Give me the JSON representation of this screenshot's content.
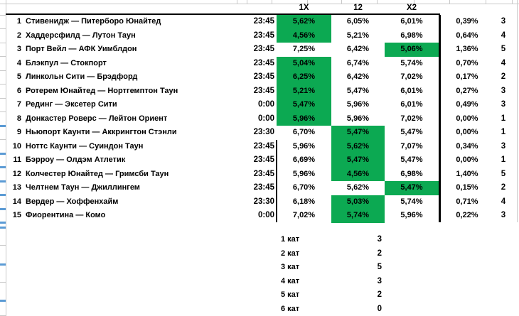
{
  "table": {
    "headers": {
      "col_1x": "1X",
      "col_12": "12",
      "col_x2": "X2"
    },
    "matches": [
      {
        "num": "1",
        "name": "Стивенидж — Питерборо Юнайтед",
        "time": "23:45",
        "odds_1x": "5,62%",
        "odds_12": "6,05%",
        "odds_x2": "6,01%",
        "highlight": "1x",
        "diff_pct": "0,39%",
        "category": "3"
      },
      {
        "num": "2",
        "name": "Хаддерсфилд — Лутон Таун",
        "time": "23:45",
        "odds_1x": "4,56%",
        "odds_12": "5,21%",
        "odds_x2": "6,98%",
        "highlight": "1x",
        "diff_pct": "0,64%",
        "category": "4"
      },
      {
        "num": "3",
        "name": "Порт Вейл — АФК Уимблдон",
        "time": "23:45",
        "odds_1x": "7,25%",
        "odds_12": "6,42%",
        "odds_x2": "5,06%",
        "highlight": "x2",
        "diff_pct": "1,36%",
        "category": "5"
      },
      {
        "num": "4",
        "name": "Блэкпул — Стокпорт",
        "time": "23:45",
        "odds_1x": "5,04%",
        "odds_12": "6,74%",
        "odds_x2": "5,74%",
        "highlight": "1x",
        "diff_pct": "0,70%",
        "category": "4"
      },
      {
        "num": "5",
        "name": "Линкольн Сити — Брэдфорд",
        "time": "23:45",
        "odds_1x": "6,25%",
        "odds_12": "6,42%",
        "odds_x2": "7,02%",
        "highlight": "1x",
        "diff_pct": "0,17%",
        "category": "2"
      },
      {
        "num": "6",
        "name": "Ротерем Юнайтед — Нортгемптон Таун",
        "time": "23:45",
        "odds_1x": "5,21%",
        "odds_12": "5,47%",
        "odds_x2": "6,01%",
        "highlight": "1x",
        "diff_pct": "0,27%",
        "category": "3"
      },
      {
        "num": "7",
        "name": "Рединг — Эксетер Сити",
        "time": "0:00",
        "odds_1x": "5,47%",
        "odds_12": "5,96%",
        "odds_x2": "6,01%",
        "highlight": "1x",
        "diff_pct": "0,49%",
        "category": "3"
      },
      {
        "num": "8",
        "name": "Донкастер Роверс — Лейтон Ориент",
        "time": "0:00",
        "odds_1x": "5,96%",
        "odds_12": "5,96%",
        "odds_x2": "7,02%",
        "highlight": "1x",
        "diff_pct": "0,00%",
        "category": "1"
      },
      {
        "num": "9",
        "name": "Ньюпорт Каунти — Аккрингтон Стэнли",
        "time": "23:30",
        "odds_1x": "6,70%",
        "odds_12": "5,47%",
        "odds_x2": "5,47%",
        "highlight": "12",
        "diff_pct": "0,00%",
        "category": "1"
      },
      {
        "num": "10",
        "name": "Ноттс Каунти — Суиндон Таун",
        "time": "23:45",
        "odds_1x": "5,96%",
        "odds_12": "5,62%",
        "odds_x2": "7,07%",
        "highlight": "12",
        "diff_pct": "0,34%",
        "category": "3"
      },
      {
        "num": "11",
        "name": "Бэрроу — Олдэм Атлетик",
        "time": "23:45",
        "odds_1x": "6,69%",
        "odds_12": "5,47%",
        "odds_x2": "5,47%",
        "highlight": "12",
        "diff_pct": "0,00%",
        "category": "1"
      },
      {
        "num": "12",
        "name": "Колчестер Юнайтед — Гримсби Таун",
        "time": "23:45",
        "odds_1x": "5,96%",
        "odds_12": "4,56%",
        "odds_x2": "6,98%",
        "highlight": "12",
        "diff_pct": "1,40%",
        "category": "5"
      },
      {
        "num": "13",
        "name": "Челтнем Таун — Джиллингем",
        "time": "23:45",
        "odds_1x": "6,70%",
        "odds_12": "5,62%",
        "odds_x2": "5,47%",
        "highlight": "x2",
        "diff_pct": "0,15%",
        "category": "2"
      },
      {
        "num": "14",
        "name": "Вердер — Хоффенхайм",
        "time": "23:30",
        "odds_1x": "6,18%",
        "odds_12": "5,03%",
        "odds_x2": "5,74%",
        "highlight": "12",
        "diff_pct": "0,71%",
        "category": "4"
      },
      {
        "num": "15",
        "name": "Фиорентина — Комо",
        "time": "0:00",
        "odds_1x": "7,02%",
        "odds_12": "5,74%",
        "odds_x2": "5,96%",
        "highlight": "12",
        "diff_pct": "0,22%",
        "category": "3"
      }
    ]
  },
  "summary": {
    "rows": [
      {
        "label": "1 кат",
        "value": "3"
      },
      {
        "label": "2 кат",
        "value": "2"
      },
      {
        "label": "3 кат",
        "value": "5"
      },
      {
        "label": "4 кат",
        "value": "3"
      },
      {
        "label": "5 кат",
        "value": "2"
      },
      {
        "label": "6 кат",
        "value": "0"
      }
    ]
  },
  "colors": {
    "highlight_green": "#0ca952",
    "gridline_gray": "#c9c9c9",
    "tick_blue": "#5b9bd5"
  }
}
